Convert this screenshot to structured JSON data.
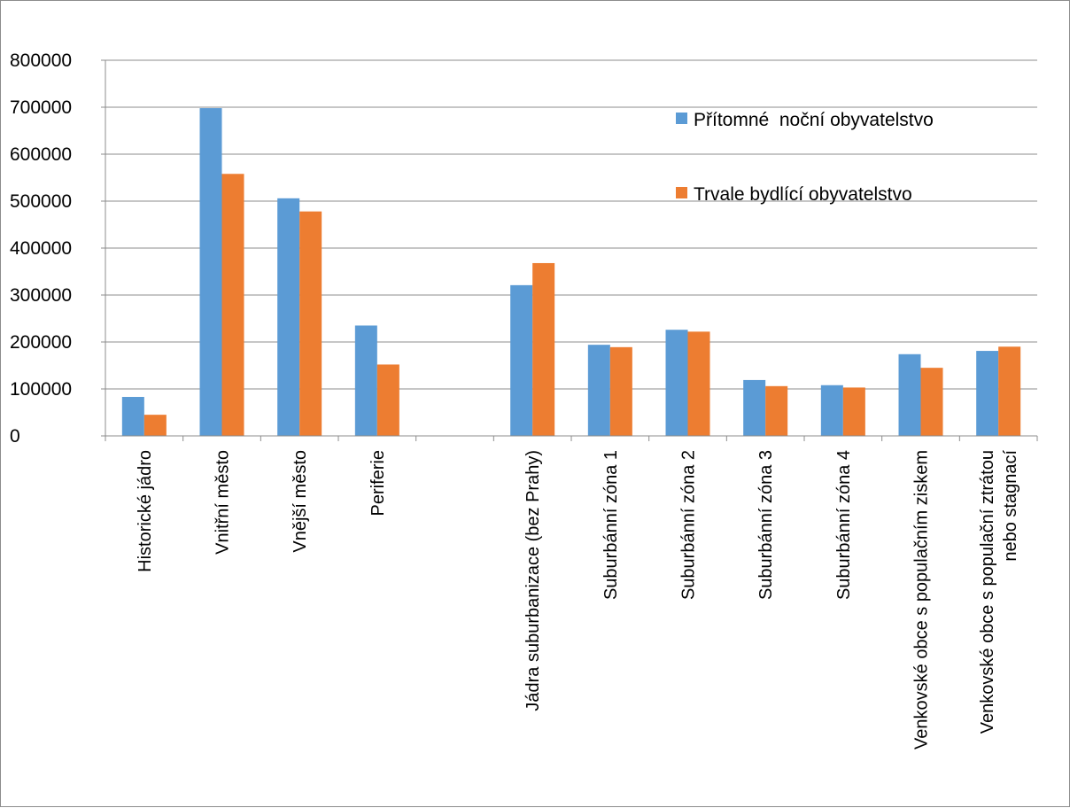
{
  "colors": {
    "series_1": "#5b9bd5",
    "series_2": "#ed7d31",
    "gridline": "#8c8c8c",
    "axis": "#8c8c8c"
  },
  "chart_data": {
    "type": "bar",
    "title": "",
    "xlabel": "",
    "ylabel": "",
    "ylim": [
      0,
      800000
    ],
    "yticks": [
      0,
      100000,
      200000,
      300000,
      400000,
      500000,
      600000,
      700000,
      800000
    ],
    "grid": true,
    "legend_position": "top-right",
    "categories": [
      [
        "Historické jádro"
      ],
      [
        "Vnitřní město"
      ],
      [
        "Vnější město"
      ],
      [
        "Periferie"
      ],
      [
        ""
      ],
      [
        "Jádra suburbanizace (bez Prahy)"
      ],
      [
        "Suburbánní zóna 1"
      ],
      [
        "Suburbánní zóna 2"
      ],
      [
        "Suburbánní zóna 3"
      ],
      [
        "Suburbánní zóna 4"
      ],
      [
        "Venkovské obce s populačním ziskem"
      ],
      [
        "Venkovské obce s populační ztrátou",
        "nebo stagnací"
      ]
    ],
    "series": [
      {
        "name": "Přítomné  noční obyvatelstvo",
        "color": "#5b9bd5",
        "values": [
          83000,
          698000,
          506000,
          235000,
          null,
          321000,
          194000,
          226000,
          119000,
          108000,
          174000,
          181000
        ]
      },
      {
        "name": "Trvale bydlící obyvatelstvo",
        "color": "#ed7d31",
        "values": [
          45000,
          558000,
          478000,
          152000,
          null,
          368000,
          189000,
          222000,
          106000,
          103000,
          145000,
          190000
        ]
      }
    ]
  }
}
